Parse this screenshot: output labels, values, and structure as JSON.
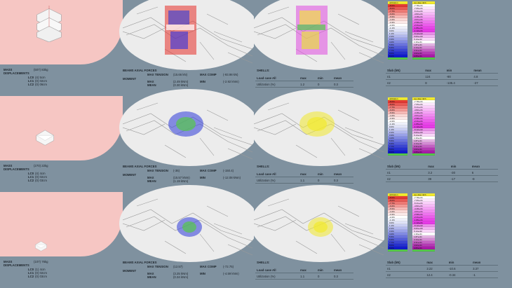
{
  "rows": [
    {
      "mass_label": "MASS",
      "mass_value": "(507) 83kg",
      "disp_label": "DISPLACEMENTS",
      "lc": [
        {
          "label": "LC0",
          "value": "(4) 5cm"
        },
        {
          "label": "LC1",
          "value": "(0) 02cm"
        },
        {
          "label": "LC2",
          "value": "(0) 06cm"
        }
      ],
      "beams_title": "BEAMS AXIAL FORCES",
      "max_tension_label": "MAX TENSION",
      "max_tension_value": "(15.66 kN)",
      "max_comp_label": "MAX COMP",
      "max_comp_value": "(-93.98 kN)",
      "moment_label": "MOMENT",
      "max_label": "MAX",
      "max_value": "(2.49 kNm)",
      "min_label": "MIN",
      "min_value": "(-2.92 kNm)",
      "mean_label": "MEAN",
      "mean_value": "(0.30 kNm)",
      "shells_label": "SHELLS:",
      "shell_header": [
        "Load case All",
        "max",
        "min",
        "mean"
      ],
      "shell_row": [
        "Utilization (%)",
        "1.2",
        "0",
        "0.3"
      ],
      "slab_header": [
        "Slab (kN)",
        "max",
        "min",
        "mean"
      ],
      "slab_rows": [
        [
          "n1",
          "124",
          "-90",
          "4.8"
        ],
        [
          "n2",
          "8",
          "-135.4",
          "-27"
        ]
      ]
    },
    {
      "mass_label": "MASS",
      "mass_value": "(270) 22kg",
      "disp_label": "DISPLACEMENTS",
      "lc": [
        {
          "label": "LC0",
          "value": "(4) 4cm"
        },
        {
          "label": "LC1",
          "value": "(0) 02cm"
        },
        {
          "label": "LC2",
          "value": "(0) 03cm"
        }
      ],
      "beams_title": "BEAMS AXIAL FORCES",
      "max_tension_label": "MAX TENSION",
      "max_tension_value": "(-36)",
      "max_comp_label": "MAX COMP",
      "max_comp_value": "(-150.4)",
      "moment_label": "MOMENT",
      "max_label": "MAX",
      "max_value": "(15.57 kNm)",
      "min_label": "MIN",
      "min_value": "(-12.08 kNm)",
      "mean_label": "MEAN",
      "mean_value": "(1.19 kNm)",
      "shells_label": "SHELLS:",
      "shell_header": [
        "Load case All",
        "max",
        "min",
        "mean"
      ],
      "shell_row": [
        "Utilization (%)",
        "1.1",
        "0",
        "0.3"
      ],
      "slab_header": [
        "Slab (kN)",
        "max",
        "min",
        "mean"
      ],
      "slab_rows": [
        [
          "n1",
          "3.2",
          "-30",
          "6"
        ],
        [
          "n2",
          "39",
          "-17",
          "-9"
        ]
      ]
    },
    {
      "mass_label": "MASS",
      "mass_value": "(107) 76kg",
      "disp_label": "DISPLACEMENTS",
      "lc": [
        {
          "label": "LC0",
          "value": "(1) 4cm"
        },
        {
          "label": "LC1",
          "value": "(0) 02cm"
        },
        {
          "label": "LC2",
          "value": "(0) 03cm"
        }
      ],
      "beams_title": "BEAMS AXIAL FORCES",
      "max_tension_label": "MAX TENSION",
      "max_tension_value": "(12.57)",
      "max_comp_label": "MAX COMP",
      "max_comp_value": "(-72.75)",
      "moment_label": "MOMENT",
      "max_label": "MAX",
      "max_value": "(3.25 kNm)",
      "min_label": "MIN",
      "min_value": "(-4.59 kNm)",
      "mean_label": "MEAN",
      "mean_value": "(0.34 kNm)",
      "shells_label": "SHELLS:",
      "shell_header": [
        "Load case All",
        "max",
        "min",
        "mean"
      ],
      "shell_row": [
        "Utilization (%)",
        "1.1",
        "0",
        "0.3"
      ],
      "slab_header": [
        "Slab (kN)",
        "max",
        "min",
        "mean"
      ],
      "slab_rows": [
        [
          "n1",
          "2.22",
          "-10.6",
          "3.37"
        ],
        [
          "n2",
          "12.4",
          "-0.34",
          "-1"
        ]
      ]
    }
  ],
  "legend_utilization_title": "utilization",
  "legend_ratio_title": "res drag (kN)",
  "colors": {
    "pink_bg": "#f6c6c3",
    "panel_bg": "#7f919f",
    "ellipse": "#ececec",
    "tension_red": "#e8302a",
    "comp_blue": "#2e3bd8",
    "green": "#55c84a",
    "yellow": "#f2ea2e",
    "magenta": "#e04ae0"
  },
  "legend_left": [
    "-8.0%",
    "-8.0%",
    "-7.7%",
    "-6.6%",
    "-5.5%",
    "-4.4%",
    "-3.3%",
    "-2.2%",
    "-1.1%",
    "0.0%",
    "1.1%",
    "2.2%",
    "3.3%",
    "4.4%",
    "5.5%",
    "6.6%",
    "7.7%",
    "8.0%",
    "8.0%"
  ],
  "legend_right": [
    "-7.78e-01",
    "-7.66e-01",
    "-5.41e-01",
    "-4.82e-01",
    "-4.28e-01",
    "-3.61e-01",
    "-2.98e-01",
    "-2.41e-01",
    "-1.86e-01",
    "-1.12e-01",
    "-5.12e-02",
    "0.00e+00",
    "5.14e-02",
    "1.33e-01",
    "1.87e-01",
    "2.44e-01",
    "3.31e-01",
    "4.02e-01",
    "4.66e-01"
  ]
}
